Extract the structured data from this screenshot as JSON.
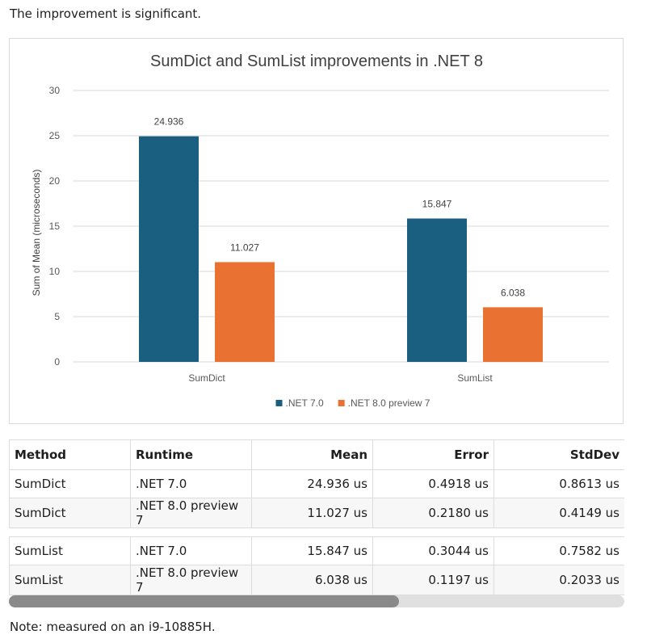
{
  "intro_text": "The improvement is significant.",
  "note_text": "Note: measured on an i9-10885H.",
  "chart_data": {
    "type": "bar",
    "title": "SumDict and SumList improvements in .NET 8",
    "ylabel": "Sum of Mean (microseconds)",
    "xlabel": "",
    "categories": [
      "SumDict",
      "SumList"
    ],
    "series": [
      {
        "name": ".NET 7.0",
        "color": "#1a5e80",
        "values": [
          24.936,
          15.847
        ],
        "labels": [
          "24.936",
          "15.847"
        ]
      },
      {
        "name": ".NET 8.0 preview 7",
        "color": "#e97132",
        "values": [
          11.027,
          6.038
        ],
        "labels": [
          "11.027",
          "6.038"
        ]
      }
    ],
    "ylim": [
      0,
      30
    ],
    "yticks": [
      0,
      5,
      10,
      15,
      20,
      25,
      30
    ],
    "grid": true,
    "legend": "bottom"
  },
  "table": {
    "headers": [
      "Method",
      "Runtime",
      "Mean",
      "Error",
      "StdDev"
    ],
    "rows": [
      [
        "SumDict",
        ".NET 7.0",
        "24.936 us",
        "0.4918 us",
        "0.8613 us"
      ],
      [
        "SumDict",
        ".NET 8.0 preview 7",
        "11.027 us",
        "0.2180 us",
        "0.4149 us"
      ],
      [
        "SumList",
        ".NET 7.0",
        "15.847 us",
        "0.3044 us",
        "0.7582 us"
      ],
      [
        "SumList",
        ".NET 8.0 preview 7",
        "6.038 us",
        "0.1197 us",
        "0.2033 us"
      ]
    ]
  }
}
